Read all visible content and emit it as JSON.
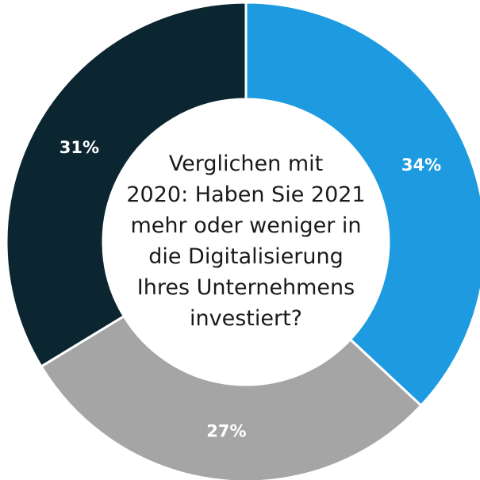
{
  "chart_data": {
    "type": "donut",
    "title": [
      "Verglichen mit",
      "2020: Haben Sie 2021",
      "mehr oder weniger in",
      "die Digitalisierung",
      "Ihres Unternehmens",
      "investiert?"
    ],
    "values": [
      34,
      27,
      31
    ],
    "value_labels": [
      "34%",
      "27%",
      "31%"
    ],
    "colors": [
      "#1e9be0",
      "#a5a5a5",
      "#0b2631"
    ]
  }
}
